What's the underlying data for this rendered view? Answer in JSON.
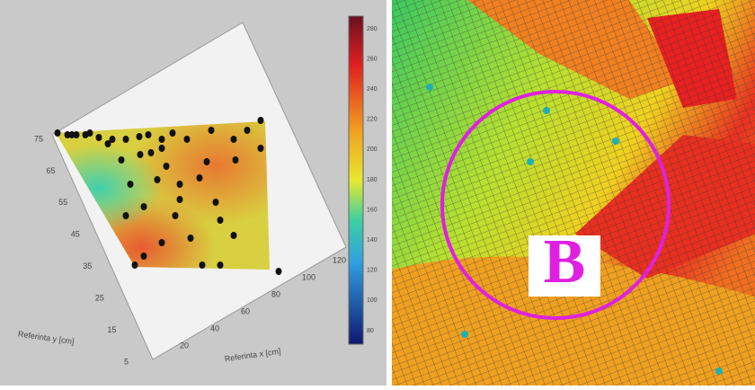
{
  "left_panel": {
    "colorbar_labels": [
      "280",
      "260",
      "240",
      "220",
      "200",
      "180",
      "160",
      "140",
      "120",
      "100",
      "80"
    ],
    "y_axis_ticks": [
      "75",
      "65",
      "55",
      "45",
      "35",
      "25",
      "15",
      "5"
    ],
    "x_axis_ticks": [
      "20",
      "40",
      "60",
      "80",
      "100",
      "120"
    ],
    "y_axis_title": "Referinta y [cm]",
    "x_axis_title": "Referinta x [cm]"
  },
  "right_panel": {
    "label": "B"
  }
}
